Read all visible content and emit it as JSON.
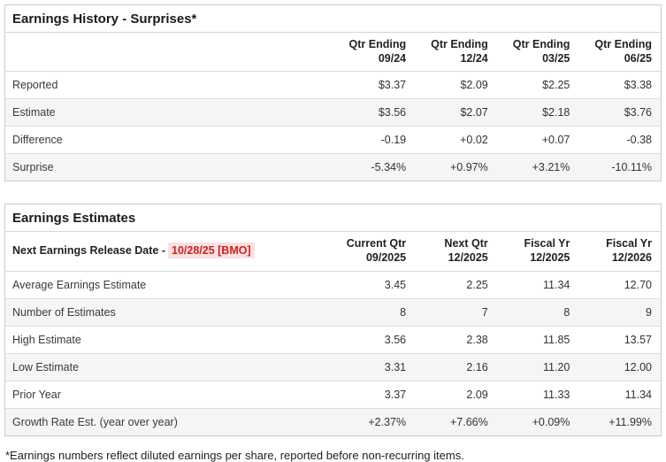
{
  "colors": {
    "positive": "#2e9578",
    "negative": "#cc3b3b",
    "release_date_text": "#cc2222",
    "release_date_bg": "#fbe1e1",
    "shaded_row_bg": "#f5f5f5"
  },
  "earnings_history": {
    "title": "Earnings History - Surprises*",
    "columns": [
      {
        "line1": "Qtr Ending",
        "line2": "09/24"
      },
      {
        "line1": "Qtr Ending",
        "line2": "12/24"
      },
      {
        "line1": "Qtr Ending",
        "line2": "03/25"
      },
      {
        "line1": "Qtr Ending",
        "line2": "06/25"
      }
    ],
    "rows": [
      {
        "label": "Reported",
        "values": [
          {
            "text": "$3.37",
            "tone": "neutral"
          },
          {
            "text": "$2.09",
            "tone": "neutral"
          },
          {
            "text": "$2.25",
            "tone": "neutral"
          },
          {
            "text": "$3.38",
            "tone": "neutral"
          }
        ]
      },
      {
        "label": "Estimate",
        "values": [
          {
            "text": "$3.56",
            "tone": "neutral"
          },
          {
            "text": "$2.07",
            "tone": "neutral"
          },
          {
            "text": "$2.18",
            "tone": "neutral"
          },
          {
            "text": "$3.76",
            "tone": "neutral"
          }
        ]
      },
      {
        "label": "Difference",
        "values": [
          {
            "text": "-0.19",
            "tone": "negative"
          },
          {
            "text": "+0.02",
            "tone": "positive"
          },
          {
            "text": "+0.07",
            "tone": "positive"
          },
          {
            "text": "-0.38",
            "tone": "negative"
          }
        ]
      },
      {
        "label": "Surprise",
        "values": [
          {
            "text": "-5.34%",
            "tone": "negative"
          },
          {
            "text": "+0.97%",
            "tone": "positive"
          },
          {
            "text": "+3.21%",
            "tone": "positive"
          },
          {
            "text": "-10.11%",
            "tone": "negative"
          }
        ]
      }
    ]
  },
  "earnings_estimates": {
    "title": "Earnings Estimates",
    "release_date_label": "Next Earnings Release Date -",
    "release_date_value": "10/28/25 [BMO]",
    "columns": [
      {
        "line1": "Current Qtr",
        "line2": "09/2025"
      },
      {
        "line1": "Next Qtr",
        "line2": "12/2025"
      },
      {
        "line1": "Fiscal Yr",
        "line2": "12/2025"
      },
      {
        "line1": "Fiscal Yr",
        "line2": "12/2026"
      }
    ],
    "rows": [
      {
        "label": "Average Earnings Estimate",
        "values": [
          {
            "text": "3.45",
            "tone": "neutral"
          },
          {
            "text": "2.25",
            "tone": "neutral"
          },
          {
            "text": "11.34",
            "tone": "neutral"
          },
          {
            "text": "12.70",
            "tone": "neutral"
          }
        ]
      },
      {
        "label": "Number of Estimates",
        "values": [
          {
            "text": "8",
            "tone": "neutral"
          },
          {
            "text": "7",
            "tone": "neutral"
          },
          {
            "text": "8",
            "tone": "neutral"
          },
          {
            "text": "9",
            "tone": "neutral"
          }
        ]
      },
      {
        "label": "High Estimate",
        "values": [
          {
            "text": "3.56",
            "tone": "neutral"
          },
          {
            "text": "2.38",
            "tone": "neutral"
          },
          {
            "text": "11.85",
            "tone": "neutral"
          },
          {
            "text": "13.57",
            "tone": "neutral"
          }
        ]
      },
      {
        "label": "Low Estimate",
        "values": [
          {
            "text": "3.31",
            "tone": "neutral"
          },
          {
            "text": "2.16",
            "tone": "neutral"
          },
          {
            "text": "11.20",
            "tone": "neutral"
          },
          {
            "text": "12.00",
            "tone": "neutral"
          }
        ]
      },
      {
        "label": "Prior Year",
        "values": [
          {
            "text": "3.37",
            "tone": "neutral"
          },
          {
            "text": "2.09",
            "tone": "neutral"
          },
          {
            "text": "11.33",
            "tone": "neutral"
          },
          {
            "text": "11.34",
            "tone": "neutral"
          }
        ]
      },
      {
        "label": "Growth Rate Est. (year over year)",
        "values": [
          {
            "text": "+2.37%",
            "tone": "positive"
          },
          {
            "text": "+7.66%",
            "tone": "positive"
          },
          {
            "text": "+0.09%",
            "tone": "positive"
          },
          {
            "text": "+11.99%",
            "tone": "positive"
          }
        ]
      }
    ]
  },
  "footnote": "*Earnings numbers reflect diluted earnings per share, reported before non-recurring items."
}
